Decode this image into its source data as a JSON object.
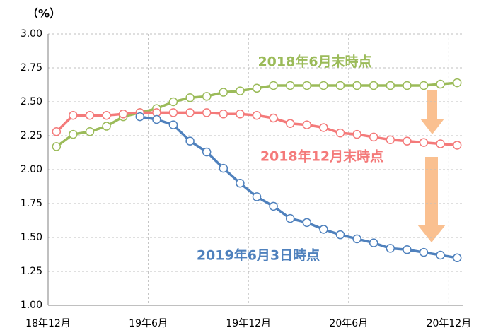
{
  "chart_data": {
    "type": "line",
    "y_label": "（%）",
    "categories": [
      "18年12月",
      null,
      null,
      null,
      null,
      null,
      "19年6月",
      null,
      null,
      null,
      null,
      null,
      "19年12月",
      null,
      null,
      null,
      null,
      null,
      "20年6月",
      null,
      null,
      null,
      null,
      null,
      "20年12月"
    ],
    "series": [
      {
        "name": "2018年6月末時点",
        "color": "#9bbb59",
        "values": [
          2.17,
          2.26,
          2.28,
          2.32,
          2.39,
          2.42,
          2.45,
          2.5,
          2.53,
          2.54,
          2.57,
          2.58,
          2.6,
          2.62,
          2.62,
          2.62,
          2.62,
          2.62,
          2.62,
          2.62,
          2.62,
          2.62,
          2.62,
          2.63,
          2.64
        ]
      },
      {
        "name": "2018年12月末時点",
        "color": "#f47a7a",
        "values": [
          2.28,
          2.4,
          2.4,
          2.4,
          2.41,
          2.42,
          2.42,
          2.42,
          2.42,
          2.42,
          2.41,
          2.41,
          2.4,
          2.38,
          2.34,
          2.33,
          2.31,
          2.27,
          2.26,
          2.24,
          2.22,
          2.21,
          2.2,
          2.19,
          2.18
        ]
      },
      {
        "name": "2019年6月3日時点",
        "color": "#4f81bd",
        "values": [
          null,
          null,
          null,
          null,
          null,
          2.39,
          2.37,
          2.33,
          2.21,
          2.13,
          2.01,
          1.9,
          1.8,
          1.73,
          1.64,
          1.61,
          1.56,
          1.52,
          1.49,
          1.46,
          1.42,
          1.41,
          1.39,
          1.37,
          1.35
        ]
      }
    ],
    "ylim": [
      1,
      3
    ],
    "yticks": [
      {
        "value": 1,
        "label": "1.00"
      },
      {
        "value": 1.25,
        "label": "1.25"
      },
      {
        "value": 1.5,
        "label": "1.50"
      },
      {
        "value": 1.75,
        "label": "1.75"
      },
      {
        "value": 2,
        "label": "2.00"
      },
      {
        "value": 2.25,
        "label": "2.25"
      },
      {
        "value": 2.5,
        "label": "2.50"
      },
      {
        "value": 2.75,
        "label": "2.75"
      },
      {
        "value": 3,
        "label": "3.00"
      }
    ],
    "grid": true
  }
}
